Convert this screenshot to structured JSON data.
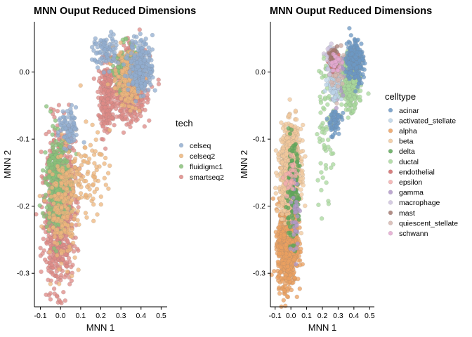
{
  "chart_data": [
    {
      "type": "scatter",
      "title": "MNN Ouput Reduced Dimensions",
      "xlabel": "MNN 1",
      "ylabel": "MNN 2",
      "xlim": [
        -0.13,
        0.53
      ],
      "ylim": [
        -0.35,
        0.075
      ],
      "xticks": [
        -0.1,
        0.0,
        0.1,
        0.2,
        0.3,
        0.4,
        0.5
      ],
      "xtick_labels": [
        "-0.1",
        "0.0",
        "0.1",
        "0.2",
        "0.3",
        "0.4",
        "0.5"
      ],
      "yticks": [
        -0.3,
        -0.2,
        -0.1,
        0.0
      ],
      "ytick_labels": [
        "-0.3",
        "-0.2",
        "-0.1",
        "0.0"
      ],
      "grid": false,
      "legend": {
        "title": "tech",
        "position": "right",
        "entries": [
          {
            "name": "celseq",
            "color": "#92aed0"
          },
          {
            "name": "celseq2",
            "color": "#edb67c"
          },
          {
            "name": "fluidigmc1",
            "color": "#88c17a"
          },
          {
            "name": "smartseq2",
            "color": "#de8a86"
          }
        ]
      },
      "groups": [
        {
          "series": "smartseq2",
          "weight": 50,
          "regions": [
            {
              "x": [
                -0.09,
                0.08
              ],
              "y": [
                -0.33,
                -0.08
              ],
              "w": 5
            },
            {
              "x": [
                0.25,
                0.44
              ],
              "y": [
                -0.08,
                0.04
              ],
              "w": 3
            },
            {
              "x": [
                0.18,
                0.28
              ],
              "y": [
                -0.1,
                0.02
              ],
              "w": 1
            }
          ]
        },
        {
          "series": "fluidigmc1",
          "weight": 14,
          "regions": [
            {
              "x": [
                -0.08,
                0.05
              ],
              "y": [
                -0.25,
                -0.08
              ],
              "w": 4
            },
            {
              "x": [
                0.25,
                0.38
              ],
              "y": [
                -0.03,
                0.05
              ],
              "w": 1
            }
          ]
        },
        {
          "series": "celseq2",
          "weight": 14,
          "regions": [
            {
              "x": [
                -0.08,
                0.1
              ],
              "y": [
                -0.3,
                -0.1
              ],
              "w": 2
            },
            {
              "x": [
                0.25,
                0.42
              ],
              "y": [
                -0.06,
                0.04
              ],
              "w": 2
            },
            {
              "x": [
                0.0,
                0.25
              ],
              "y": [
                -0.23,
                -0.08
              ],
              "w": 1
            }
          ]
        },
        {
          "series": "celseq",
          "weight": 12,
          "regions": [
            {
              "x": [
                0.33,
                0.47
              ],
              "y": [
                -0.04,
                0.055
              ],
              "w": 3
            },
            {
              "x": [
                0.15,
                0.3
              ],
              "y": [
                0.0,
                0.06
              ],
              "w": 1
            },
            {
              "x": [
                -0.02,
                0.1
              ],
              "y": [
                -0.12,
                -0.05
              ],
              "w": 1
            }
          ]
        }
      ]
    },
    {
      "type": "scatter",
      "title": "MNN Ouput Reduced Dimensions",
      "xlabel": "MNN 1",
      "ylabel": "MNN 2",
      "xlim": [
        -0.13,
        0.53
      ],
      "ylim": [
        -0.35,
        0.075
      ],
      "xticks": [
        -0.1,
        0.0,
        0.1,
        0.2,
        0.3,
        0.4,
        0.5
      ],
      "xtick_labels": [
        "-0.1",
        "0.0",
        "0.1",
        "0.2",
        "0.3",
        "0.4",
        "0.5"
      ],
      "yticks": [
        -0.3,
        -0.2,
        -0.1,
        0.0
      ],
      "ytick_labels": [
        "-0.3",
        "-0.2",
        "-0.1",
        "0.0"
      ],
      "grid": false,
      "legend": {
        "title": "celltype",
        "position": "right",
        "entries": [
          {
            "name": "acinar",
            "color": "#6c98c4"
          },
          {
            "name": "activated_stellate",
            "color": "#bcd4e8"
          },
          {
            "name": "alpha",
            "color": "#eba060"
          },
          {
            "name": "beta",
            "color": "#f1c89c"
          },
          {
            "name": "delta",
            "color": "#5fa85a"
          },
          {
            "name": "ductal",
            "color": "#a8d89c"
          },
          {
            "name": "endothelial",
            "color": "#d06a6a"
          },
          {
            "name": "epsilon",
            "color": "#f3aeae"
          },
          {
            "name": "gamma",
            "color": "#b199c9"
          },
          {
            "name": "macrophage",
            "color": "#cfc3df"
          },
          {
            "name": "mast",
            "color": "#a57a72"
          },
          {
            "name": "quiescent_stellate",
            "color": "#d6b7b0"
          },
          {
            "name": "schwann",
            "color": "#e4a8d0"
          }
        ]
      },
      "groups": [
        {
          "series": "alpha",
          "weight": 30,
          "regions": [
            {
              "x": [
                -0.09,
                0.05
              ],
              "y": [
                -0.33,
                -0.18
              ],
              "w": 1
            }
          ]
        },
        {
          "series": "beta",
          "weight": 26,
          "regions": [
            {
              "x": [
                -0.08,
                0.07
              ],
              "y": [
                -0.22,
                -0.07
              ],
              "w": 1
            }
          ]
        },
        {
          "series": "ductal",
          "weight": 16,
          "regions": [
            {
              "x": [
                0.31,
                0.44
              ],
              "y": [
                -0.06,
                0.03
              ],
              "w": 6
            },
            {
              "x": [
                0.15,
                0.3
              ],
              "y": [
                -0.2,
                0.06
              ],
              "w": 1
            }
          ]
        },
        {
          "series": "acinar",
          "weight": 9,
          "regions": [
            {
              "x": [
                0.34,
                0.47
              ],
              "y": [
                -0.02,
                0.055
              ],
              "w": 4
            },
            {
              "x": [
                0.22,
                0.33
              ],
              "y": [
                -0.1,
                -0.05
              ],
              "w": 1
            }
          ]
        },
        {
          "series": "delta",
          "weight": 4,
          "regions": [
            {
              "x": [
                -0.04,
                0.06
              ],
              "y": [
                -0.26,
                -0.1
              ],
              "w": 1
            }
          ]
        },
        {
          "series": "gamma",
          "weight": 3,
          "regions": [
            {
              "x": [
                0.25,
                0.34
              ],
              "y": [
                -0.04,
                0.03
              ],
              "w": 2
            },
            {
              "x": [
                0.0,
                0.06
              ],
              "y": [
                -0.28,
                -0.15
              ],
              "w": 1
            }
          ]
        },
        {
          "series": "activated_stellate",
          "weight": 3,
          "regions": [
            {
              "x": [
                0.22,
                0.33
              ],
              "y": [
                -0.05,
                0.03
              ],
              "w": 1
            }
          ]
        },
        {
          "series": "quiescent_stellate",
          "weight": 2,
          "regions": [
            {
              "x": [
                0.24,
                0.34
              ],
              "y": [
                -0.03,
                0.05
              ],
              "w": 1
            }
          ]
        },
        {
          "series": "endothelial",
          "weight": 2,
          "regions": [
            {
              "x": [
                0.24,
                0.3
              ],
              "y": [
                0.0,
                0.03
              ],
              "w": 1
            }
          ]
        },
        {
          "series": "epsilon",
          "weight": 1,
          "regions": [
            {
              "x": [
                -0.05,
                0.05
              ],
              "y": [
                -0.2,
                -0.12
              ],
              "w": 1
            }
          ]
        },
        {
          "series": "macrophage",
          "weight": 1,
          "regions": [
            {
              "x": [
                0.22,
                0.3
              ],
              "y": [
                0.0,
                0.04
              ],
              "w": 1
            }
          ]
        },
        {
          "series": "mast",
          "weight": 1,
          "regions": [
            {
              "x": [
                0.24,
                0.3
              ],
              "y": [
                0.01,
                0.04
              ],
              "w": 1
            }
          ]
        },
        {
          "series": "schwann",
          "weight": 1,
          "regions": [
            {
              "x": [
                0.25,
                0.32
              ],
              "y": [
                0.0,
                0.03
              ],
              "w": 1
            }
          ]
        }
      ]
    }
  ]
}
